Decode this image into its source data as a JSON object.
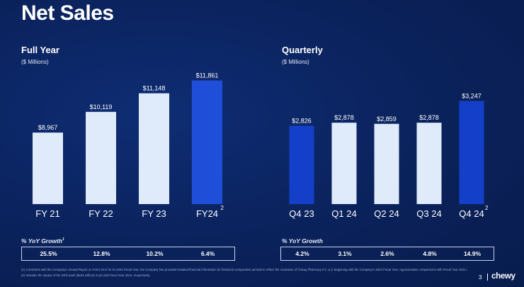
{
  "slide": {
    "title": "Net Sales",
    "page_number": "3",
    "logo_text": "chewy",
    "footnotes": [
      "(1)   Consistent with the Company's Annual Report on Form 10-K for its 2022 Fiscal Year, the Company has provided restated financial information for historical comparative periods to reflect the resolution of Chewy Pharmacy KY, LLC beginning with the Company's 2023 Fiscal Year. Approximates comparisons with Fiscal Year 2021 consistent with previously reported financial information.",
      "(2)   Includes the impact of the 53rd week ($182 million) in Q4 and Fiscal Year 2024, respectively."
    ]
  },
  "annual": {
    "section_title": "Full Year",
    "unit_label": "($ Millions)",
    "yoy_label": "% YoY Growth",
    "yoy_superscript": "1",
    "yoy": [
      "25.5%",
      "12.8%",
      "10.2%",
      "6.4%"
    ],
    "category_superscripts": [
      "",
      "",
      "",
      "2"
    ]
  },
  "quarterly": {
    "section_title": "Quarterly",
    "unit_label": "($ Millions)",
    "yoy_label": "% YoY Growth",
    "yoy": [
      "4.2%",
      "3.1%",
      "2.6%",
      "4.8%",
      "14.9%"
    ],
    "category_superscripts": [
      "",
      "",
      "",
      "",
      "2"
    ]
  },
  "colors": {
    "bar_light": "#dfeafb",
    "bar_highlight": "#1f4fd8",
    "bar_blue": "#1440c9"
  },
  "chart_data": [
    {
      "type": "bar",
      "title": "Full Year",
      "ylabel": "($ Millions)",
      "categories": [
        "FY 21",
        "FY 22",
        "FY 23",
        "FY24"
      ],
      "values": [
        8967,
        10119,
        11148,
        11861
      ],
      "data_labels": [
        "$8,967",
        "$10,119",
        "$11,148",
        "$11,861"
      ],
      "bar_colors": [
        "light",
        "light",
        "light",
        "highlight"
      ],
      "ylim": [
        0,
        12000
      ],
      "grid": false,
      "legend": "none"
    },
    {
      "type": "bar",
      "title": "Quarterly",
      "ylabel": "($ Millions)",
      "categories": [
        "Q4 23",
        "Q1 24",
        "Q2 24",
        "Q3 24",
        "Q4 24"
      ],
      "values": [
        2826,
        2878,
        2859,
        2878,
        3247
      ],
      "data_labels": [
        "$2,826",
        "$2,878",
        "$2,859",
        "$2,878",
        "$3,247"
      ],
      "bar_colors": [
        "blue",
        "light",
        "light",
        "light",
        "blue"
      ],
      "ylim": [
        0,
        3300
      ],
      "grid": false,
      "legend": "none"
    }
  ]
}
